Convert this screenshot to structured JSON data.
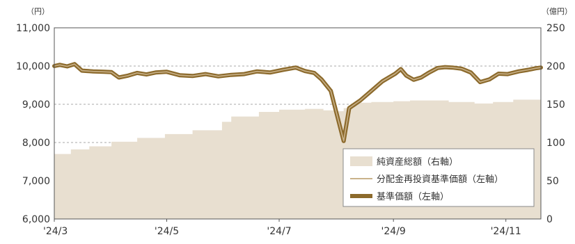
{
  "chart_data": {
    "type": "area+line",
    "left_axis_unit": "（円）",
    "right_axis_unit": "（億円）",
    "left_ylim": [
      6000,
      11000
    ],
    "left_ticks": [
      "6,000",
      "7,000",
      "8,000",
      "9,000",
      "10,000",
      "11,000"
    ],
    "left_tick_values": [
      6000,
      7000,
      8000,
      9000,
      10000,
      11000
    ],
    "right_ylim": [
      0,
      250
    ],
    "right_ticks": [
      "0",
      "50",
      "100",
      "150",
      "200",
      "250"
    ],
    "right_tick_values": [
      0,
      50,
      100,
      150,
      200,
      250
    ],
    "x_ticks": [
      "'24/3",
      "'24/5",
      "'24/7",
      "'24/9",
      "'24/11"
    ],
    "x_tick_dates": [
      "2024-03-01",
      "2024-05-01",
      "2024-07-01",
      "2024-09-01",
      "2024-11-01"
    ],
    "x_range": [
      "2024-03-01",
      "2024-11-20"
    ],
    "grid": "dashed horizontal at left-axis major ticks",
    "legend_position": "bottom-right",
    "series": [
      {
        "name": "純資産総額（右軸）",
        "type": "area",
        "axis": "right",
        "color": "#e8dfd0",
        "points": [
          [
            "2024-03-01",
            78
          ],
          [
            "2024-03-10",
            85
          ],
          [
            "2024-03-20",
            91
          ],
          [
            "2024-04-01",
            95
          ],
          [
            "2024-04-15",
            101
          ],
          [
            "2024-04-30",
            106
          ],
          [
            "2024-05-15",
            111
          ],
          [
            "2024-05-31",
            116
          ],
          [
            "2024-06-05",
            127
          ],
          [
            "2024-06-20",
            134
          ],
          [
            "2024-07-01",
            140
          ],
          [
            "2024-07-15",
            143
          ],
          [
            "2024-07-25",
            144
          ],
          [
            "2024-08-01",
            142
          ],
          [
            "2024-08-05",
            141
          ],
          [
            "2024-08-10",
            145
          ],
          [
            "2024-08-20",
            152
          ],
          [
            "2024-09-01",
            153
          ],
          [
            "2024-09-10",
            154
          ],
          [
            "2024-09-20",
            155
          ],
          [
            "2024-10-01",
            155
          ],
          [
            "2024-10-15",
            153
          ],
          [
            "2024-10-25",
            151
          ],
          [
            "2024-11-05",
            153
          ],
          [
            "2024-11-20",
            156
          ]
        ]
      },
      {
        "name": "分配金再投資基準価額（左軸）",
        "type": "line",
        "axis": "left",
        "color": "#c9b28a",
        "points": [
          [
            "2024-03-01",
            10000
          ],
          [
            "2024-03-04",
            10030
          ],
          [
            "2024-03-08",
            9990
          ],
          [
            "2024-03-12",
            10050
          ],
          [
            "2024-03-16",
            9880
          ],
          [
            "2024-03-22",
            9860
          ],
          [
            "2024-03-28",
            9850
          ],
          [
            "2024-04-01",
            9840
          ],
          [
            "2024-04-05",
            9700
          ],
          [
            "2024-04-10",
            9750
          ],
          [
            "2024-04-15",
            9820
          ],
          [
            "2024-04-20",
            9780
          ],
          [
            "2024-04-25",
            9830
          ],
          [
            "2024-05-01",
            9850
          ],
          [
            "2024-05-08",
            9760
          ],
          [
            "2024-05-15",
            9740
          ],
          [
            "2024-05-22",
            9790
          ],
          [
            "2024-05-29",
            9730
          ],
          [
            "2024-06-05",
            9770
          ],
          [
            "2024-06-12",
            9790
          ],
          [
            "2024-06-19",
            9860
          ],
          [
            "2024-06-26",
            9830
          ],
          [
            "2024-07-03",
            9900
          ],
          [
            "2024-07-10",
            9960
          ],
          [
            "2024-07-15",
            9870
          ],
          [
            "2024-07-20",
            9820
          ],
          [
            "2024-07-24",
            9650
          ],
          [
            "2024-07-29",
            9350
          ],
          [
            "2024-08-05",
            8040
          ],
          [
            "2024-08-08",
            8900
          ],
          [
            "2024-08-14",
            9100
          ],
          [
            "2024-08-20",
            9350
          ],
          [
            "2024-08-26",
            9600
          ],
          [
            "2024-09-02",
            9800
          ],
          [
            "2024-09-05",
            9920
          ],
          [
            "2024-09-08",
            9750
          ],
          [
            "2024-09-12",
            9640
          ],
          [
            "2024-09-16",
            9700
          ],
          [
            "2024-09-20",
            9820
          ],
          [
            "2024-09-25",
            9950
          ],
          [
            "2024-09-29",
            9970
          ],
          [
            "2024-10-03",
            9960
          ],
          [
            "2024-10-08",
            9930
          ],
          [
            "2024-10-13",
            9830
          ],
          [
            "2024-10-18",
            9580
          ],
          [
            "2024-10-23",
            9650
          ],
          [
            "2024-10-28",
            9800
          ],
          [
            "2024-11-02",
            9790
          ],
          [
            "2024-11-08",
            9860
          ],
          [
            "2024-11-13",
            9900
          ],
          [
            "2024-11-17",
            9940
          ],
          [
            "2024-11-20",
            9960
          ]
        ]
      },
      {
        "name": "基準価額（左軸）",
        "type": "line",
        "axis": "left",
        "color": "#8c6a2c",
        "points": [
          [
            "2024-03-01",
            10000
          ],
          [
            "2024-03-04",
            10030
          ],
          [
            "2024-03-08",
            9990
          ],
          [
            "2024-03-12",
            10050
          ],
          [
            "2024-03-16",
            9880
          ],
          [
            "2024-03-22",
            9860
          ],
          [
            "2024-03-28",
            9850
          ],
          [
            "2024-04-01",
            9840
          ],
          [
            "2024-04-05",
            9700
          ],
          [
            "2024-04-10",
            9750
          ],
          [
            "2024-04-15",
            9820
          ],
          [
            "2024-04-20",
            9780
          ],
          [
            "2024-04-25",
            9830
          ],
          [
            "2024-05-01",
            9850
          ],
          [
            "2024-05-08",
            9760
          ],
          [
            "2024-05-15",
            9740
          ],
          [
            "2024-05-22",
            9790
          ],
          [
            "2024-05-29",
            9730
          ],
          [
            "2024-06-05",
            9770
          ],
          [
            "2024-06-12",
            9790
          ],
          [
            "2024-06-19",
            9860
          ],
          [
            "2024-06-26",
            9830
          ],
          [
            "2024-07-03",
            9900
          ],
          [
            "2024-07-10",
            9960
          ],
          [
            "2024-07-15",
            9870
          ],
          [
            "2024-07-20",
            9820
          ],
          [
            "2024-07-24",
            9650
          ],
          [
            "2024-07-29",
            9350
          ],
          [
            "2024-08-05",
            8040
          ],
          [
            "2024-08-08",
            8900
          ],
          [
            "2024-08-14",
            9100
          ],
          [
            "2024-08-20",
            9350
          ],
          [
            "2024-08-26",
            9600
          ],
          [
            "2024-09-02",
            9800
          ],
          [
            "2024-09-05",
            9920
          ],
          [
            "2024-09-08",
            9750
          ],
          [
            "2024-09-12",
            9640
          ],
          [
            "2024-09-16",
            9700
          ],
          [
            "2024-09-20",
            9820
          ],
          [
            "2024-09-25",
            9950
          ],
          [
            "2024-09-29",
            9970
          ],
          [
            "2024-10-03",
            9960
          ],
          [
            "2024-10-08",
            9930
          ],
          [
            "2024-10-13",
            9830
          ],
          [
            "2024-10-18",
            9580
          ],
          [
            "2024-10-23",
            9650
          ],
          [
            "2024-10-28",
            9800
          ],
          [
            "2024-11-02",
            9790
          ],
          [
            "2024-11-08",
            9860
          ],
          [
            "2024-11-13",
            9900
          ],
          [
            "2024-11-17",
            9940
          ],
          [
            "2024-11-20",
            9960
          ]
        ]
      }
    ]
  }
}
